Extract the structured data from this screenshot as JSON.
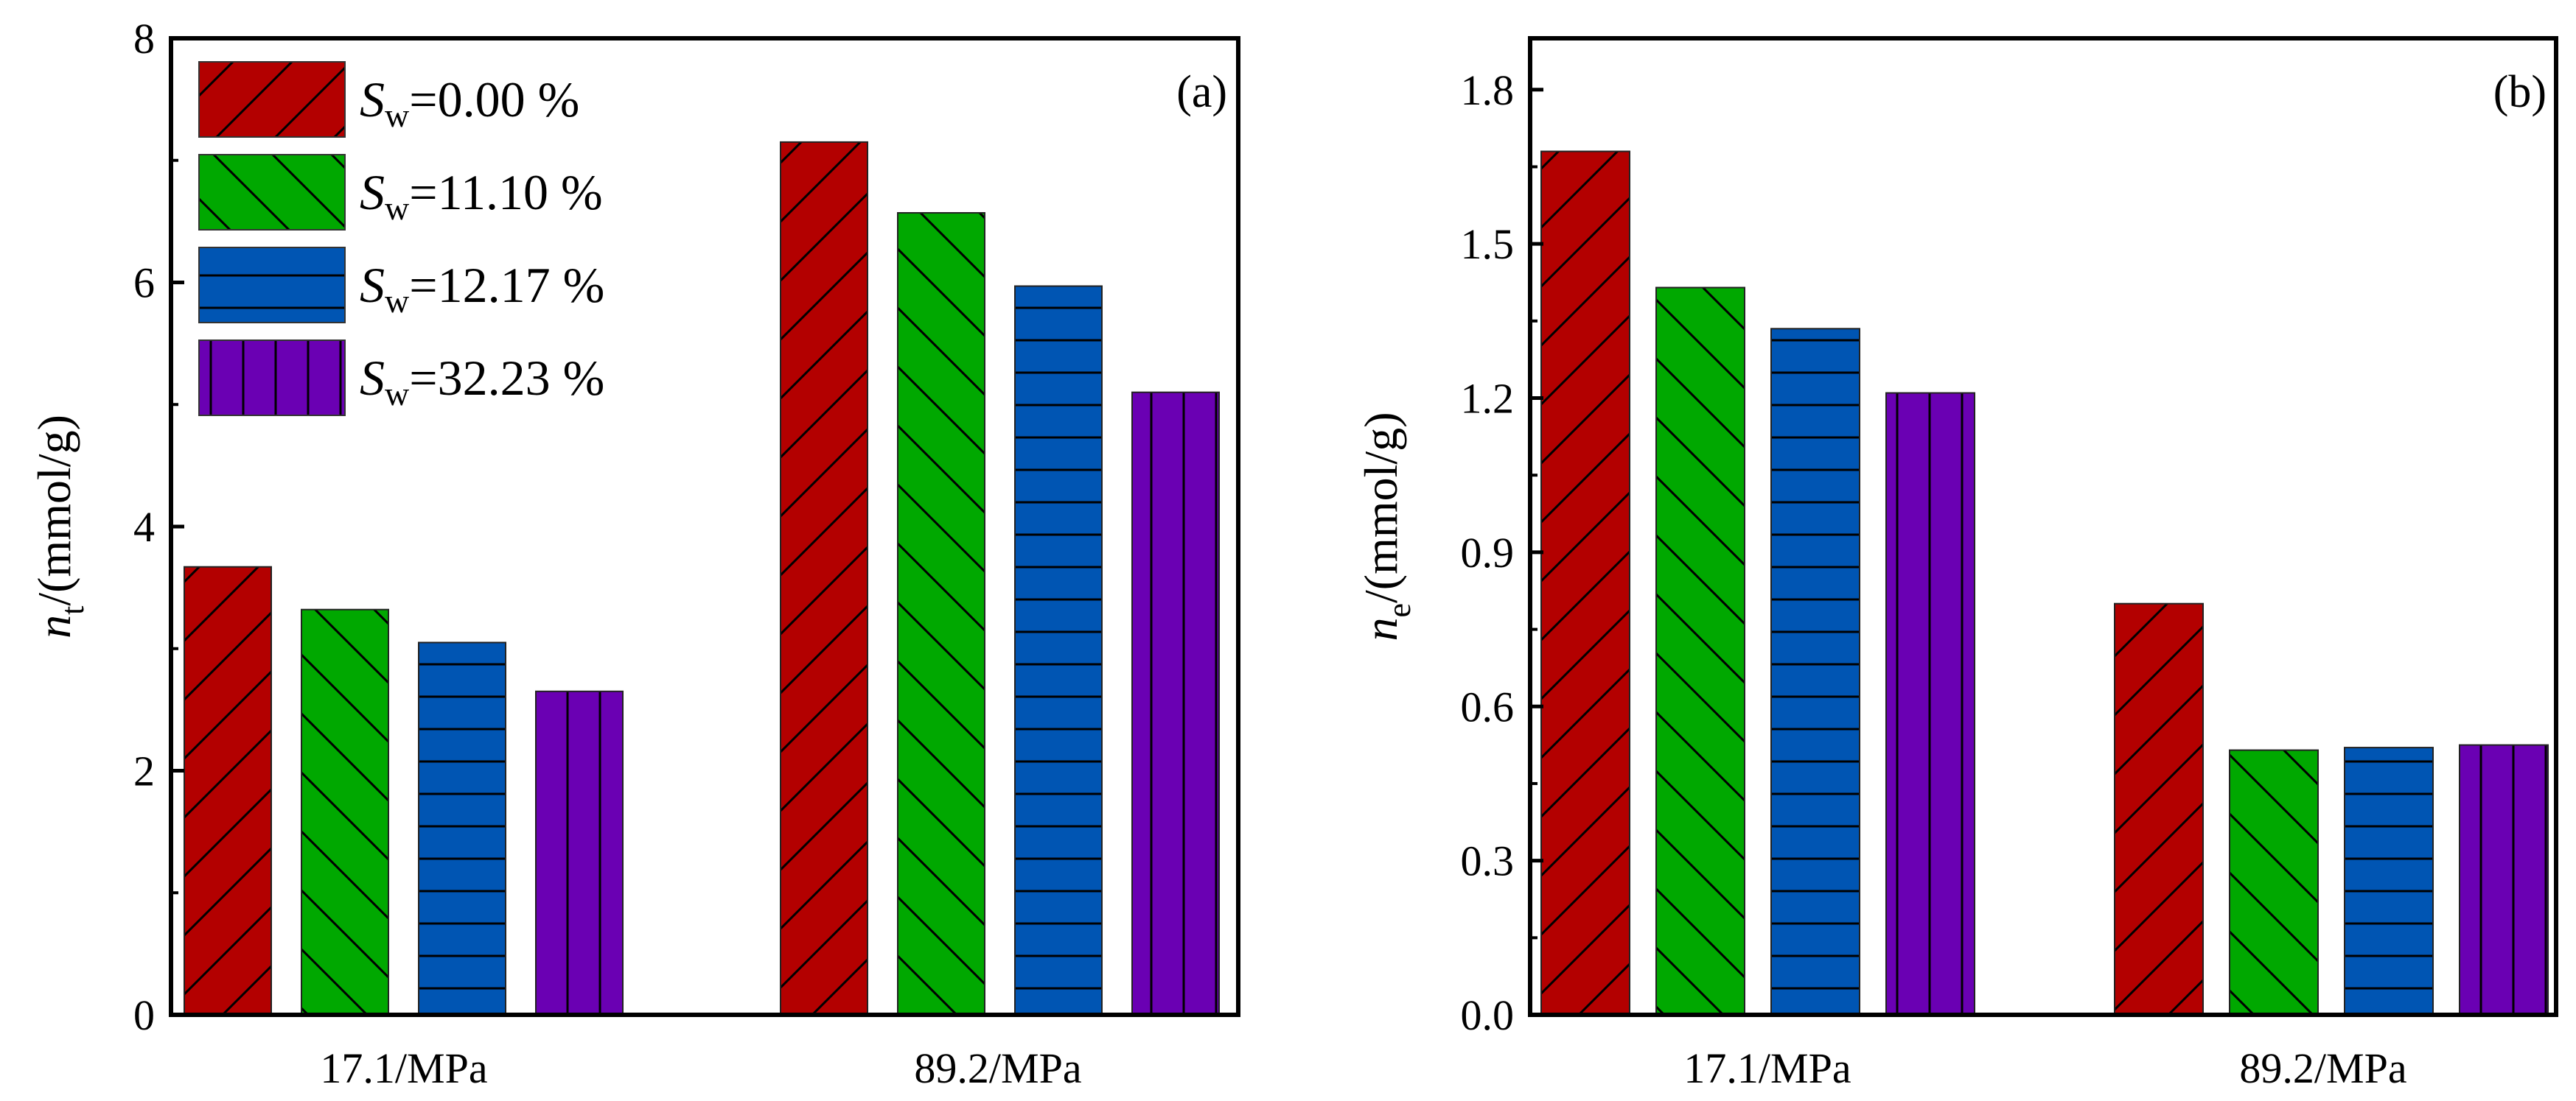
{
  "figure": {
    "colors": {
      "sw_0": "#b30000",
      "sw_11": "#00a800",
      "sw_12": "#0055b3",
      "sw_32": "#6a00b3"
    }
  },
  "legend": [
    {
      "prefix": "S",
      "sub": "w",
      "value": "=0.00 %",
      "pattern": "diag-up",
      "color": "#b30000"
    },
    {
      "prefix": "S",
      "sub": "w",
      "value": "=11.10 %",
      "pattern": "diag-down",
      "color": "#00a800"
    },
    {
      "prefix": "S",
      "sub": "w",
      "value": "=12.17 %",
      "pattern": "horizontal",
      "color": "#0055b3"
    },
    {
      "prefix": "S",
      "sub": "w",
      "value": "=32.23 %",
      "pattern": "vertical",
      "color": "#6a00b3"
    }
  ],
  "chart_data": [
    {
      "type": "bar",
      "panel_label": "(a)",
      "ylabel": {
        "main": "n",
        "sub": "t",
        "unit": "/(mmol/g)"
      },
      "categories": [
        "17.1/MPa",
        "89.2/MPa"
      ],
      "ylim": [
        0,
        8
      ],
      "yticks": [
        "0",
        "2",
        "4",
        "6",
        "8"
      ],
      "series": [
        {
          "name": "Sw=0.00 %",
          "values": [
            3.67,
            7.15
          ]
        },
        {
          "name": "Sw=11.10 %",
          "values": [
            3.32,
            6.57
          ]
        },
        {
          "name": "Sw=12.17 %",
          "values": [
            3.05,
            5.97
          ]
        },
        {
          "name": "Sw=32.23 %",
          "values": [
            2.65,
            5.1
          ]
        }
      ],
      "legend_position": "top-left",
      "grid": false
    },
    {
      "type": "bar",
      "panel_label": "(b)",
      "ylabel": {
        "main": "n",
        "sub": "e",
        "unit": "/(mmol/g)"
      },
      "categories": [
        "17.1/MPa",
        "89.2/MPa"
      ],
      "ylim": [
        0,
        1.9
      ],
      "yticks": [
        "0.0",
        "0.3",
        "0.6",
        "0.9",
        "1.2",
        "1.5",
        "1.8"
      ],
      "series": [
        {
          "name": "Sw=0.00 %",
          "values": [
            1.68,
            0.8
          ]
        },
        {
          "name": "Sw=11.10 %",
          "values": [
            1.415,
            0.515
          ]
        },
        {
          "name": "Sw=12.17 %",
          "values": [
            1.335,
            0.52
          ]
        },
        {
          "name": "Sw=32.23 %",
          "values": [
            1.21,
            0.525
          ]
        }
      ],
      "grid": false
    }
  ]
}
